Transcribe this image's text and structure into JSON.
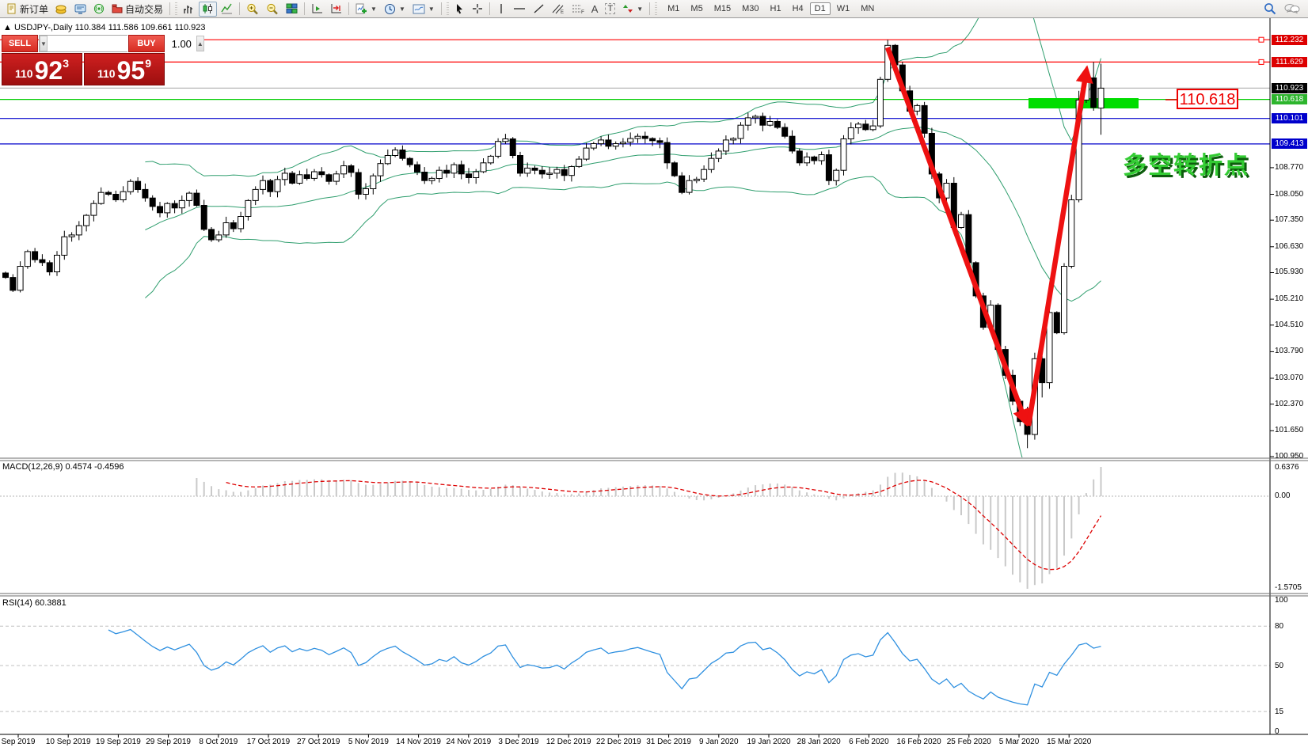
{
  "toolbar": {
    "new_order_label": "新订单",
    "autotrading_label": "自动交易",
    "timeframes": [
      "M1",
      "M5",
      "M15",
      "M30",
      "H1",
      "H4",
      "D1",
      "W1",
      "MN"
    ],
    "active_timeframe": "D1",
    "text_tool_a": "A",
    "text_tool_t": "T"
  },
  "symbol_line": {
    "expander": "▲",
    "name": "USDJPY-,Daily",
    "ohlc": "110.384 111.586 109.661 110.923"
  },
  "order_panel": {
    "sell_label": "SELL",
    "buy_label": "BUY",
    "volume": "1.00",
    "sell": {
      "prefix": "110",
      "big": "92",
      "sup": "3"
    },
    "buy": {
      "prefix": "110",
      "big": "95",
      "sup": "9"
    }
  },
  "chart_data": {
    "type": "candlestick",
    "symbol": "USDJPY-",
    "timeframe": "Daily",
    "current_bar": {
      "open": "110.384",
      "high": "111.586",
      "low": "109.661",
      "close": "110.923"
    },
    "closes": [
      105.8,
      105.45,
      106.1,
      106.5,
      106.28,
      106.2,
      105.95,
      106.4,
      106.9,
      106.95,
      107.2,
      107.48,
      107.8,
      108.1,
      108.05,
      107.9,
      108.12,
      108.4,
      108.18,
      107.95,
      107.72,
      107.55,
      107.8,
      107.68,
      107.88,
      108.08,
      107.75,
      107.1,
      106.82,
      106.95,
      107.28,
      107.12,
      107.45,
      107.88,
      108.18,
      108.42,
      108.12,
      108.45,
      108.62,
      108.35,
      108.58,
      108.48,
      108.66,
      108.58,
      108.4,
      108.6,
      108.82,
      108.64,
      108.05,
      108.2,
      108.55,
      108.88,
      109.1,
      109.25,
      109.02,
      108.85,
      108.65,
      108.42,
      108.48,
      108.7,
      108.62,
      108.85,
      108.6,
      108.5,
      108.66,
      108.9,
      109.08,
      109.48,
      109.55,
      109.1,
      108.62,
      108.76,
      108.7,
      108.6,
      108.62,
      108.72,
      108.56,
      108.8,
      109.0,
      109.3,
      109.42,
      109.52,
      109.35,
      109.42,
      109.46,
      109.56,
      109.62,
      109.56,
      109.5,
      109.45,
      108.9,
      108.55,
      108.1,
      108.42,
      108.46,
      108.72,
      109.02,
      109.22,
      109.52,
      109.56,
      109.92,
      110.12,
      110.16,
      109.92,
      110.02,
      109.86,
      109.62,
      109.22,
      108.9,
      109.06,
      108.96,
      109.12,
      108.42,
      108.7,
      109.55,
      109.85,
      109.95,
      109.8,
      109.9,
      111.16,
      112.08,
      111.55,
      110.85,
      110.3,
      110.45,
      109.7,
      108.6,
      107.95,
      108.35,
      107.15,
      107.5,
      106.2,
      105.3,
      104.45,
      105.05,
      103.85,
      103.15,
      102.45,
      101.9,
      101.55,
      103.6,
      102.95,
      104.85,
      104.3,
      106.1,
      107.9,
      110.6,
      111.2,
      110.4,
      110.923
    ],
    "overrides": {
      "120": {
        "h": 112.232
      },
      "139": {
        "o": 102.05,
        "h": 102.3,
        "l": 101.18
      },
      "141": {
        "l": 102.55
      },
      "146": {
        "h": 110.85
      },
      "147": {
        "h": 111.5
      },
      "148": {
        "h": 111.629
      },
      "149": {
        "o": 110.384,
        "h": 111.586,
        "l": 109.661,
        "c": 110.923
      }
    },
    "bollinger": {
      "period": 20,
      "deviation": 2,
      "color": "#2f9e6e"
    },
    "levels": [
      {
        "label": "112.232",
        "value": 112.232,
        "line_color": "#ff0000",
        "badge_color": "#dd0000",
        "marker": true
      },
      {
        "label": "111.629",
        "value": 111.629,
        "line_color": "#ff0000",
        "badge_color": "#dd0000",
        "marker": true
      },
      {
        "label": "110.923",
        "value": 110.923,
        "line_color": "#b8b8b8",
        "badge_color": "#000000",
        "marker": false
      },
      {
        "label": "110.618",
        "value": 110.618,
        "line_color": "#00cc00",
        "badge_color": "#2db52d",
        "marker": false
      },
      {
        "label": "110.101",
        "value": 110.101,
        "line_color": "#0000cc",
        "badge_color": "#0000cc",
        "marker": false
      },
      {
        "label": "109.413",
        "value": 109.413,
        "line_color": "#0000cc",
        "badge_color": "#0000cc",
        "marker": false
      }
    ],
    "y_ticks": [
      "108.770",
      "108.050",
      "107.350",
      "106.630",
      "105.930",
      "105.210",
      "104.510",
      "103.790",
      "103.070",
      "102.370",
      "101.650",
      "100.950"
    ],
    "x_labels": [
      "Sep 2019",
      "10 Sep 2019",
      "19 Sep 2019",
      "29 Sep 2019",
      "8 Oct 2019",
      "17 Oct 2019",
      "27 Oct 2019",
      "5 Nov 2019",
      "14 Nov 2019",
      "24 Nov 2019",
      "3 Dec 2019",
      "12 Dec 2019",
      "22 Dec 2019",
      "31 Dec 2019",
      "9 Jan 2020",
      "19 Jan 2020",
      "28 Jan 2020",
      "6 Feb 2020",
      "16 Feb 2020",
      "25 Feb 2020",
      "5 Mar 2020",
      "15 Mar 2020"
    ],
    "macd": {
      "label": "MACD(12,26,9)",
      "values": "0.4574 -0.4596",
      "fast": 12,
      "slow": 26,
      "signal": 9,
      "axis_labels": {
        "top": "0.6376",
        "zero": "0.00",
        "bottom": "-1.5705"
      }
    },
    "rsi": {
      "label": "RSI(14)",
      "value": "60.3881",
      "period": 14,
      "axis_labels": [
        "100",
        "80",
        "50",
        "15",
        "0"
      ],
      "level_lines": [
        80,
        50,
        15
      ]
    },
    "annotations": {
      "zone_label": "110.618",
      "turning_point_text": "多空转折点",
      "turning_point_color": "#33cc33",
      "arrow_color": "#ee1111"
    }
  }
}
